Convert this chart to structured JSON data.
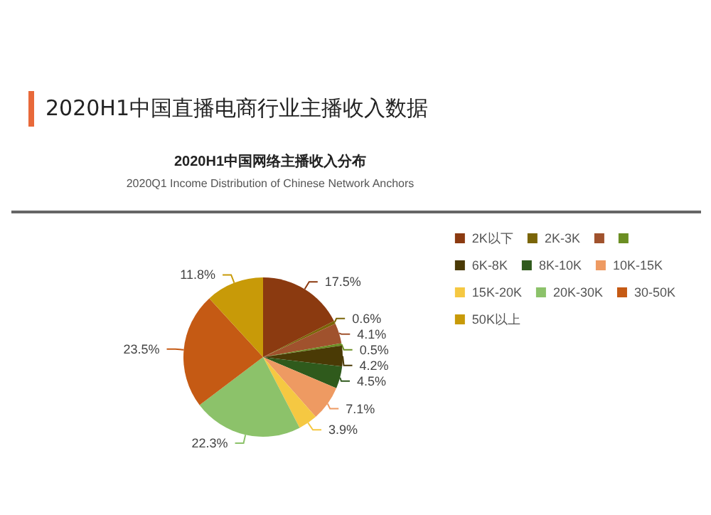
{
  "chart_data": {
    "type": "pie",
    "title": "2020H1中国直播电商行业主播收入数据",
    "subtitle": "2020H1中国网络主播收入分布",
    "annotations": [
      "2020Q1 Income Distribution of Chinese Network Anchors"
    ],
    "categories": [
      "2K以下",
      "2K-3K",
      null,
      null,
      "6K-8K",
      "8K-10K",
      "10K-15K",
      "15K-20K",
      "20K-30K",
      "30-50K",
      "50K以上"
    ],
    "values": [
      17.5,
      0.6,
      4.1,
      0.5,
      4.2,
      4.5,
      7.1,
      3.9,
      22.3,
      23.5,
      11.8
    ],
    "colors": [
      "#8b3a10",
      "#7a6508",
      "#a0522d",
      "#6b8e23",
      "#4a3a05",
      "#2f5a1c",
      "#ee9a62",
      "#f5c842",
      "#8cc26a",
      "#c55a14",
      "#c89a08"
    ],
    "value_labels": [
      "17.5%",
      "0.6%",
      "4.1%",
      "0.5%",
      "4.2%",
      "4.5%",
      "7.1%",
      "3.9%",
      "22.3%",
      "23.5%",
      "11.8%"
    ],
    "legend": "right"
  }
}
